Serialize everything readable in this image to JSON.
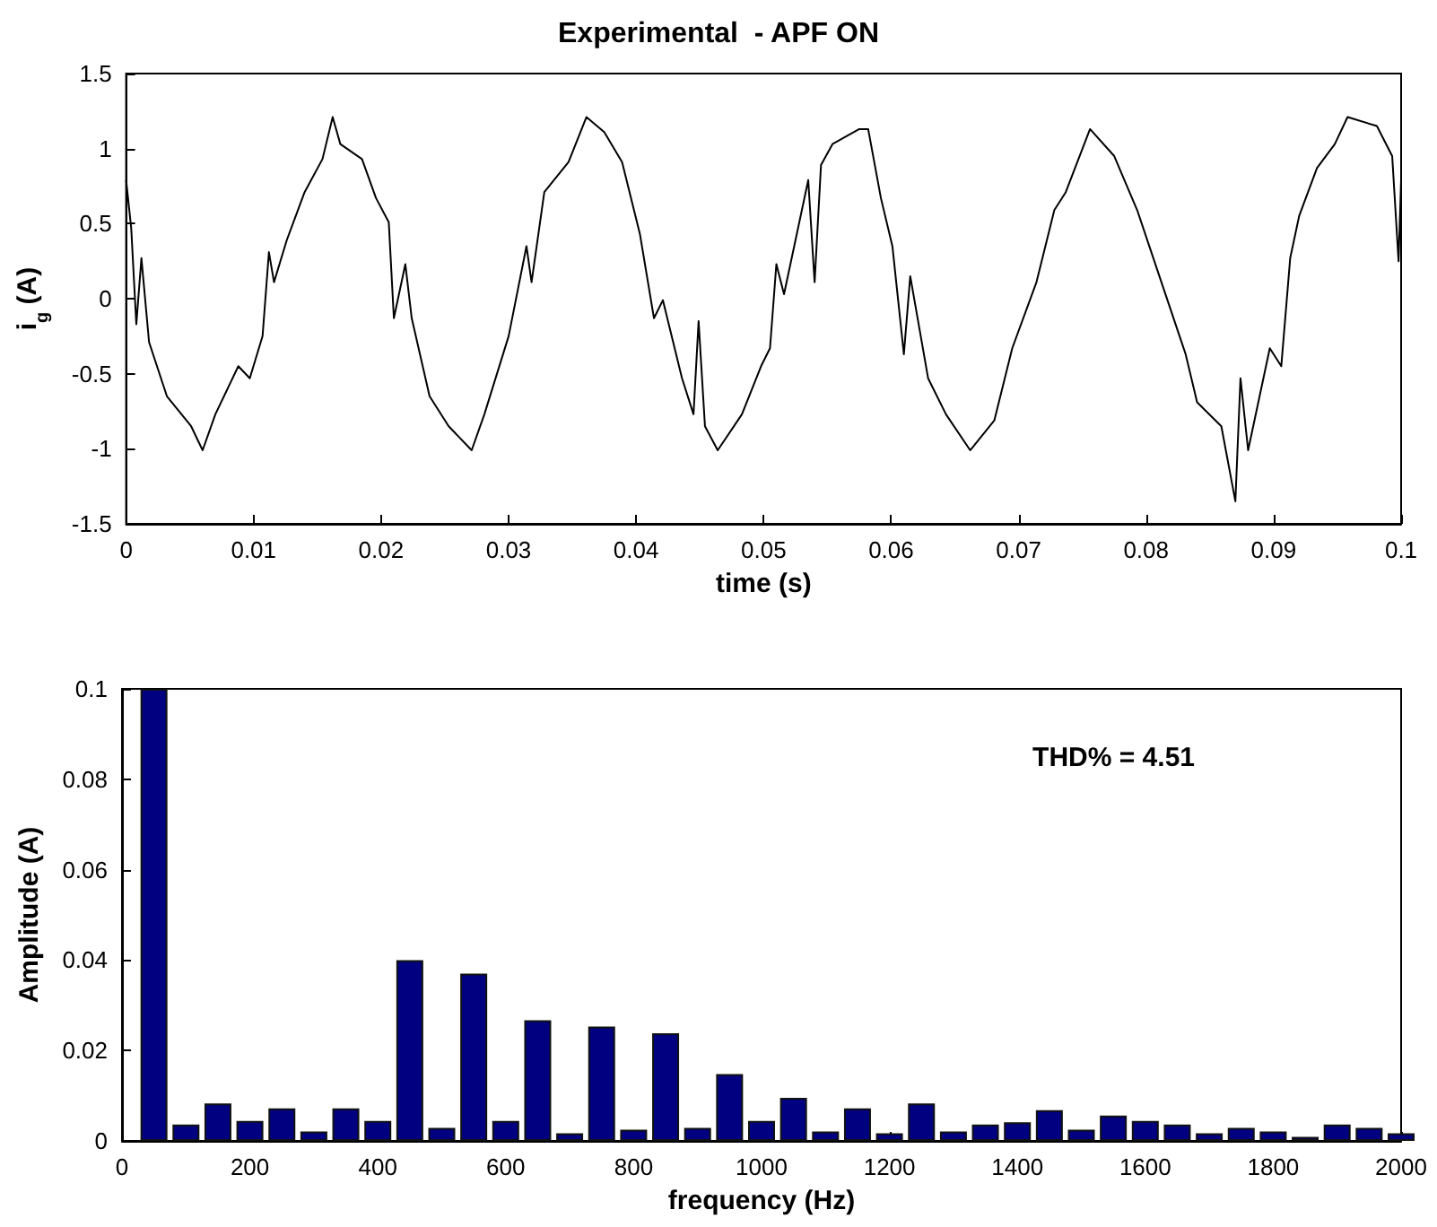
{
  "chart_data": [
    {
      "type": "line",
      "title": "Experimental  - APF ON",
      "xlabel": "time (s)",
      "ylabel": "i$_{g}$ (A)",
      "color": "#000000",
      "marker": "none",
      "x": [
        0,
        0.0004,
        0.0008,
        0.0012,
        0.0018,
        0.0032,
        0.0051,
        0.006,
        0.007,
        0.0088,
        0.0097,
        0.0107,
        0.0112,
        0.0116,
        0.0126,
        0.014,
        0.0154,
        0.0162,
        0.0168,
        0.0185,
        0.0196,
        0.0206,
        0.021,
        0.0219,
        0.0224,
        0.0238,
        0.0253,
        0.0271,
        0.0281,
        0.03,
        0.0314,
        0.0318,
        0.0328,
        0.0347,
        0.0361,
        0.0375,
        0.0389,
        0.0403,
        0.0414,
        0.0421,
        0.0436,
        0.0445,
        0.0449,
        0.0454,
        0.0464,
        0.0483,
        0.0498,
        0.0505,
        0.051,
        0.0516,
        0.0526,
        0.0535,
        0.054,
        0.0545,
        0.0554,
        0.0575,
        0.0582,
        0.0592,
        0.0601,
        0.061,
        0.0615,
        0.0629,
        0.0643,
        0.0662,
        0.0681,
        0.0695,
        0.0714,
        0.0728,
        0.0737,
        0.0756,
        0.0775,
        0.0793,
        0.0812,
        0.0831,
        0.084,
        0.0859,
        0.087,
        0.0874,
        0.088,
        0.0897,
        0.0906,
        0.0913,
        0.092,
        0.0934,
        0.0948,
        0.0958,
        0.0981,
        0.0993,
        0.0998,
        0.1
      ],
      "values": [
        0.79,
        0.47,
        -0.17,
        0.27,
        -0.29,
        -0.65,
        -0.85,
        -1.01,
        -0.77,
        -0.45,
        -0.53,
        -0.25,
        0.31,
        0.11,
        0.39,
        0.71,
        0.93,
        1.21,
        1.03,
        0.93,
        0.67,
        0.51,
        -0.13,
        0.23,
        -0.13,
        -0.65,
        -0.85,
        -1.01,
        -0.77,
        -0.25,
        0.35,
        0.11,
        0.71,
        0.91,
        1.21,
        1.11,
        0.91,
        0.43,
        -0.13,
        -0.01,
        -0.53,
        -0.77,
        -0.15,
        -0.85,
        -1.01,
        -0.77,
        -0.45,
        -0.33,
        0.23,
        0.03,
        0.43,
        0.79,
        0.11,
        0.89,
        1.03,
        1.13,
        1.13,
        0.67,
        0.35,
        -0.37,
        0.15,
        -0.53,
        -0.77,
        -1.01,
        -0.81,
        -0.33,
        0.11,
        0.59,
        0.71,
        1.13,
        0.95,
        0.59,
        0.11,
        -0.37,
        -0.69,
        -0.85,
        -1.35,
        -0.53,
        -1.01,
        -0.33,
        -0.45,
        0.27,
        0.55,
        0.87,
        1.03,
        1.21,
        1.15,
        0.95,
        0.25,
        0.79
      ],
      "xlim": [
        0,
        0.1
      ],
      "xticks": [
        0,
        0.01,
        0.02,
        0.03,
        0.04,
        0.05,
        0.06,
        0.07,
        0.08,
        0.09,
        0.1
      ],
      "ylim": [
        -1.5,
        1.5
      ],
      "yticks": [
        -1.5,
        -1,
        -0.5,
        0,
        0.5,
        1,
        1.5
      ]
    },
    {
      "type": "bar",
      "xlabel": "frequency (Hz)",
      "ylabel": "Amplitude (A)",
      "color": "#000080",
      "annotations": [
        "THD% = 4.51"
      ],
      "x": [
        50,
        100,
        150,
        200,
        250,
        300,
        350,
        400,
        450,
        500,
        550,
        600,
        650,
        700,
        750,
        800,
        850,
        900,
        950,
        1000,
        1050,
        1100,
        1150,
        1200,
        1250,
        1300,
        1350,
        1400,
        1450,
        1500,
        1550,
        1600,
        1650,
        1700,
        1750,
        1800,
        1850,
        1900,
        1950,
        2000
      ],
      "values": [
        0.1,
        0.0036,
        0.0083,
        0.0044,
        0.0072,
        0.0021,
        0.0072,
        0.0044,
        0.04,
        0.0029,
        0.037,
        0.0044,
        0.0267,
        0.0017,
        0.0253,
        0.0025,
        0.0238,
        0.0029,
        0.0148,
        0.0044,
        0.0095,
        0.0021,
        0.0072,
        0.0017,
        0.0083,
        0.0021,
        0.0036,
        0.0041,
        0.0068,
        0.0025,
        0.0056,
        0.0044,
        0.0036,
        0.0017,
        0.0029,
        0.0021,
        0.0009,
        0.0036,
        0.0029,
        0.0017
      ],
      "xlim": [
        0,
        2000
      ],
      "xticks": [
        0,
        200,
        400,
        600,
        800,
        1000,
        1200,
        1400,
        1600,
        1800,
        2000
      ],
      "ylim": [
        0,
        0.1
      ],
      "yticks": [
        0,
        0.02,
        0.04,
        0.06,
        0.08,
        0.1
      ]
    }
  ]
}
